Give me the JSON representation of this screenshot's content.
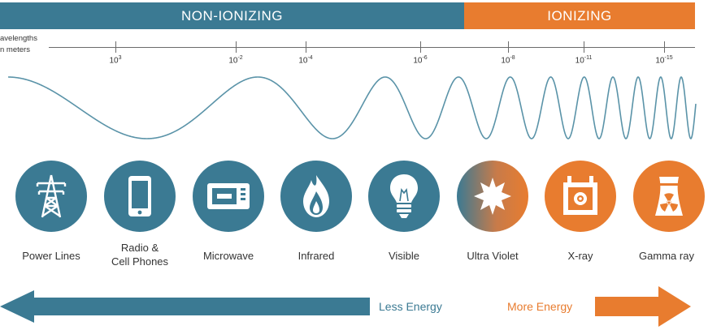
{
  "header": {
    "non_ionizing": "NON-IONIZING",
    "ionizing": "IONIZING"
  },
  "scale": {
    "label_line1": "avelengths",
    "label_line2": "n meters",
    "ticks": [
      {
        "base": "10",
        "exp": "3"
      },
      {
        "base": "10",
        "exp": "-2"
      },
      {
        "base": "10",
        "exp": "-4"
      },
      {
        "base": "10",
        "exp": "-6"
      },
      {
        "base": "10",
        "exp": "-8"
      },
      {
        "base": "10",
        "exp": "-11"
      },
      {
        "base": "10",
        "exp": "-15"
      }
    ]
  },
  "categories": [
    {
      "label": "Power Lines",
      "icon": "power-tower-icon",
      "group": "non-ionizing"
    },
    {
      "label_line1": "Radio &",
      "label_line2": "Cell Phones",
      "icon": "cell-phone-icon",
      "group": "non-ionizing"
    },
    {
      "label": "Microwave",
      "icon": "microwave-icon",
      "group": "non-ionizing"
    },
    {
      "label": "Infrared",
      "icon": "flame-icon",
      "group": "non-ionizing"
    },
    {
      "label": "Visible",
      "icon": "light-bulb-icon",
      "group": "non-ionizing"
    },
    {
      "label": "Ultra Violet",
      "icon": "sun-icon",
      "group": "ionizing"
    },
    {
      "label": "X-ray",
      "icon": "xray-machine-icon",
      "group": "ionizing"
    },
    {
      "label": "Gamma ray",
      "icon": "radiation-plant-icon",
      "group": "ionizing"
    }
  ],
  "energy": {
    "less": "Less Energy",
    "more": "More Energy"
  },
  "colors": {
    "non_ionizing": "#3b7a93",
    "ionizing": "#e87c2f"
  }
}
